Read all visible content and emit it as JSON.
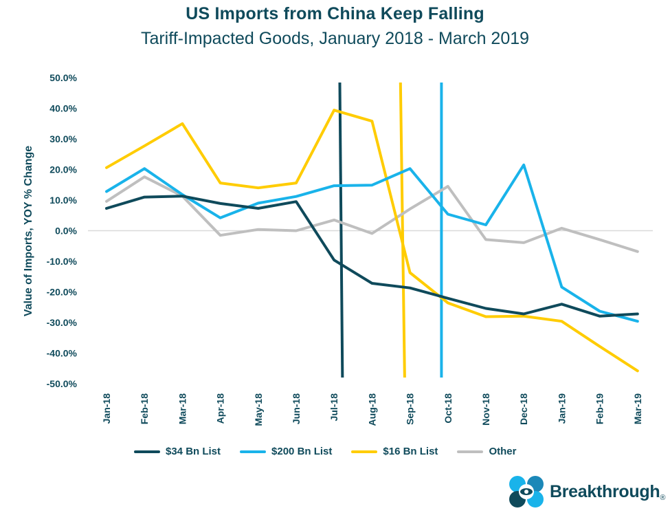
{
  "chart_data": {
    "type": "line",
    "title": "US Imports from China Keep Falling",
    "subtitle": "Tariff-Impacted Goods, January 2018 - March 2019",
    "ylabel": "Value of Imports, YOY % Change",
    "xlabel": "",
    "ylim": [
      -50,
      50
    ],
    "ytick_labels": [
      "50.0%",
      "40.0%",
      "30.0%",
      "20.0%",
      "10.0%",
      "0.0%",
      "-10.0%",
      "-20.0%",
      "-30.0%",
      "-40.0%",
      "-50.0%"
    ],
    "categories": [
      "Jan-18",
      "Feb-18",
      "Mar-18",
      "Apr-18",
      "May-18",
      "Jun-18",
      "Jul-18",
      "Aug-18",
      "Sep-18",
      "Oct-18",
      "Nov-18",
      "Dec-18",
      "Jan-19",
      "Feb-19",
      "Mar-19"
    ],
    "series": [
      {
        "name": "$34 Bn List",
        "color": "#0f4a5b",
        "values": [
          7.3,
          11.0,
          11.3,
          8.9,
          7.3,
          9.5,
          -9.6,
          -17.2,
          -18.7,
          -22.1,
          -25.4,
          -27.2,
          -24.0,
          -27.9,
          -27.2
        ]
      },
      {
        "name": "$200 Bn List",
        "color": "#19b3ea",
        "values": [
          12.8,
          20.3,
          11.8,
          4.2,
          9.0,
          11.2,
          14.7,
          14.9,
          20.3,
          5.4,
          1.9,
          21.5,
          -18.4,
          -26.3,
          -29.6
        ]
      },
      {
        "name": "$16 Bn List",
        "color": "#ffcc00",
        "values": [
          20.6,
          27.7,
          35.0,
          15.6,
          14.0,
          15.6,
          39.4,
          35.8,
          -13.7,
          -23.6,
          -28.1,
          -27.9,
          -29.6,
          -37.8,
          -45.8
        ]
      },
      {
        "name": "Other",
        "color": "#bfbfbf",
        "values": [
          9.6,
          17.6,
          11.3,
          -1.5,
          0.4,
          0.0,
          3.5,
          -0.9,
          7.1,
          14.5,
          -2.9,
          -3.9,
          0.8,
          -2.9,
          -6.8
        ]
      }
    ],
    "markers": [
      {
        "series": "$34 Bn List",
        "color": "#0f4a5b",
        "x_top": 6.15,
        "x_bottom": 6.22
      },
      {
        "series": "$16 Bn List",
        "color": "#ffcc00",
        "x_top": 7.75,
        "x_bottom": 7.86
      },
      {
        "series": "$200 Bn List",
        "color": "#19b3ea",
        "x_top": 8.83,
        "x_bottom": 8.83
      }
    ],
    "grid": false,
    "legend_position": "bottom"
  },
  "logo": {
    "text": "Breakthrough",
    "mark": "®"
  }
}
